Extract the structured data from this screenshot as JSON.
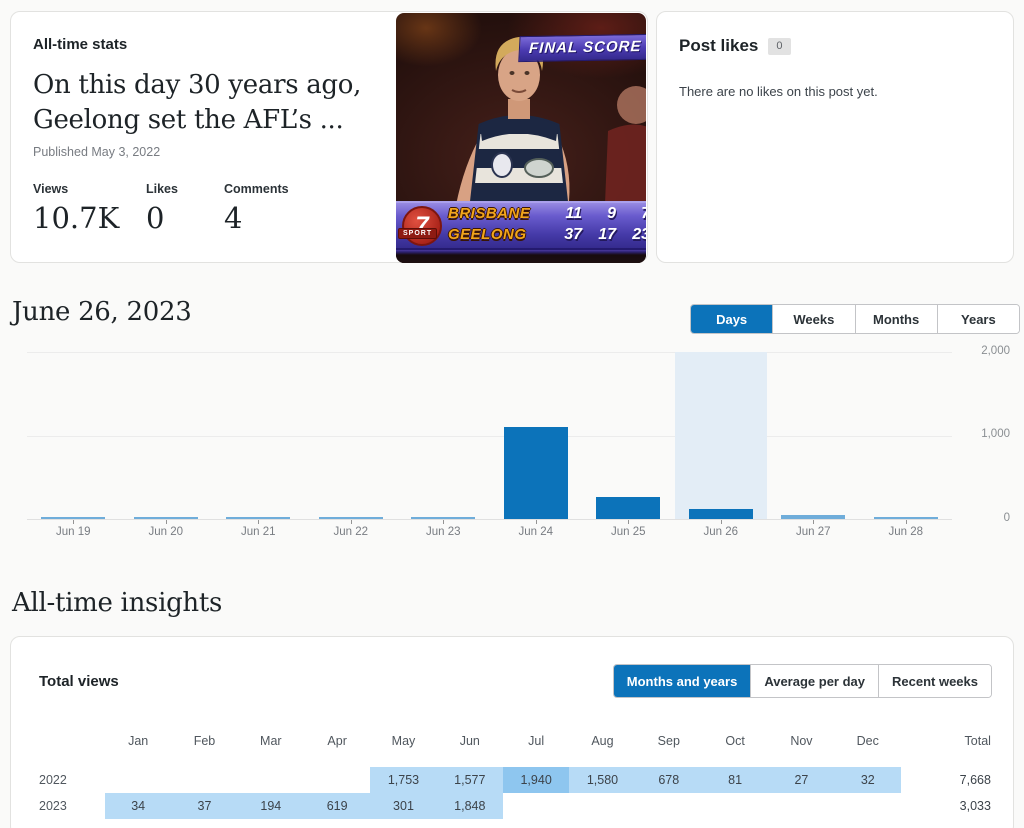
{
  "colors": {
    "accent_blue": "#0c73ba",
    "bar_blue": "#0c73ba",
    "tiny_bar_blue": "#6fadda",
    "highlight_column": "#e3edf6",
    "table_cell_blue": "#b7dbf6",
    "table_peak_cell_blue": "#8ec6ef",
    "page_background": "#fafaf9"
  },
  "post_card": {
    "section_label": "All-time stats",
    "title": "On this day 30 years ago, Geelong set the AFL’s ...",
    "published": "Published May 3, 2022",
    "stats": [
      {
        "label": "Views",
        "value": "10.7K"
      },
      {
        "label": "Likes",
        "value": "0"
      },
      {
        "label": "Comments",
        "value": "4"
      }
    ],
    "thumbnail": {
      "banner": "FINAL SCORE",
      "broadcaster_channel": "7",
      "broadcaster": "SPORT",
      "scoreboard": [
        {
          "team": "BRISBANE",
          "scores": [
            "11",
            "9",
            "7"
          ]
        },
        {
          "team": "GEELONG",
          "scores": [
            "37",
            "17",
            "23"
          ]
        }
      ]
    }
  },
  "likes_card": {
    "title": "Post likes",
    "badge": "0",
    "empty_message": "There are no likes on this post yet."
  },
  "daily_section": {
    "heading": "June 26, 2023",
    "tabs": [
      {
        "label": "Days",
        "active": true
      },
      {
        "label": "Weeks",
        "active": false
      },
      {
        "label": "Months",
        "active": false
      },
      {
        "label": "Years",
        "active": false
      }
    ]
  },
  "insights_section": {
    "heading": "All-time insights",
    "card_title": "Total views",
    "tabs": [
      {
        "label": "Months and years",
        "active": true
      },
      {
        "label": "Average per day",
        "active": false
      },
      {
        "label": "Recent weeks",
        "active": false
      }
    ]
  },
  "chart_data": [
    {
      "type": "bar",
      "title": "June 26, 2023",
      "categories": [
        "Jun 19",
        "Jun 20",
        "Jun 21",
        "Jun 22",
        "Jun 23",
        "Jun 24",
        "Jun 25",
        "Jun 26",
        "Jun 27",
        "Jun 28"
      ],
      "values": [
        20,
        25,
        15,
        15,
        20,
        1100,
        260,
        120,
        45,
        30
      ],
      "highlighted_category": "Jun 26",
      "xlabel": "",
      "ylabel": "",
      "ylim": [
        0,
        2000
      ],
      "yticks": [
        2000,
        1000,
        0
      ],
      "ytick_labels": [
        "2,000",
        "1,000",
        "0"
      ],
      "grid": true,
      "legend": false
    },
    {
      "type": "table",
      "title": "Total views",
      "columns": [
        "Jan",
        "Feb",
        "Mar",
        "Apr",
        "May",
        "Jun",
        "Jul",
        "Aug",
        "Sep",
        "Oct",
        "Nov",
        "Dec",
        "Total"
      ],
      "rows": [
        {
          "year": "2022",
          "values": [
            null,
            null,
            null,
            null,
            1753,
            1577,
            1940,
            1580,
            678,
            81,
            27,
            32
          ],
          "total": 7668,
          "peak_month": "Jul"
        },
        {
          "year": "2023",
          "values": [
            34,
            37,
            194,
            619,
            301,
            1848,
            null,
            null,
            null,
            null,
            null,
            null
          ],
          "total": 3033
        }
      ]
    }
  ]
}
